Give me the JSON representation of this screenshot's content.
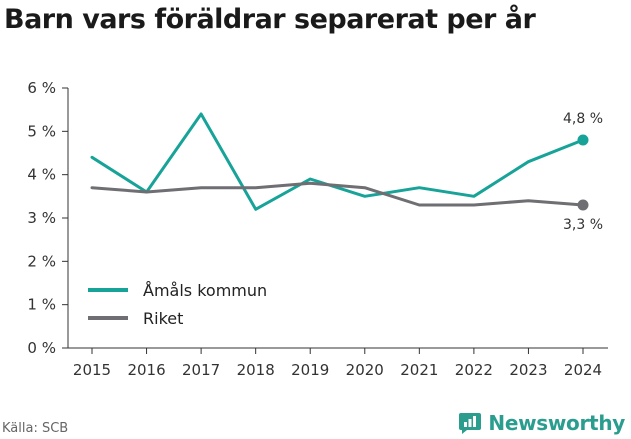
{
  "title": "Barn vars föräldrar separerat per år",
  "source": "Källa: SCB",
  "brand": {
    "name": "Newsworthy",
    "icon": "newsworthy-logo-icon",
    "color": "#2a9d8f"
  },
  "chart_data": {
    "type": "line",
    "title": "Barn vars föräldrar separerat per år",
    "xlabel": "",
    "ylabel": "",
    "categories": [
      "2015",
      "2016",
      "2017",
      "2018",
      "2019",
      "2020",
      "2021",
      "2022",
      "2023",
      "2024"
    ],
    "ylim": [
      0,
      6
    ],
    "yticks": [
      0,
      1,
      2,
      3,
      4,
      5,
      6
    ],
    "ytick_labels": [
      "0 %",
      "1 %",
      "2 %",
      "3 %",
      "4 %",
      "5 %",
      "6 %"
    ],
    "grid": false,
    "legend_position": "bottom-left",
    "series": [
      {
        "name": "Åmåls kommun",
        "color": "#17a398",
        "values": [
          4.4,
          3.6,
          5.4,
          3.2,
          3.9,
          3.5,
          3.7,
          3.5,
          4.3,
          4.8
        ],
        "end_label": "4,8 %"
      },
      {
        "name": "Riket",
        "color": "#6e6e73",
        "values": [
          3.7,
          3.6,
          3.7,
          3.7,
          3.8,
          3.7,
          3.3,
          3.3,
          3.4,
          3.3
        ],
        "end_label": "3,3 %"
      }
    ]
  }
}
